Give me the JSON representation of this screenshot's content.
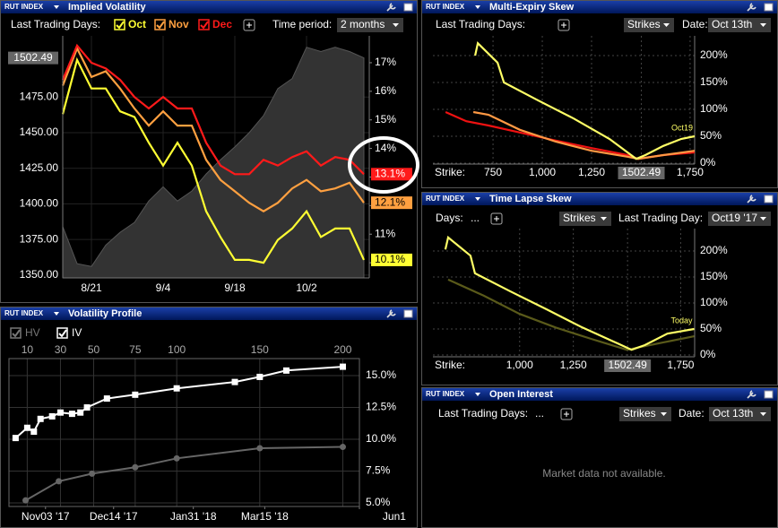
{
  "panels": [
    {
      "symbol": "RUT INDEX",
      "title": "Implied Volatility",
      "controls": {
        "days_label": "Last Trading Days:",
        "period_label": "Time period:",
        "period": "2 months"
      },
      "chart": {
        "type": "line",
        "categories": [
          null,
          null,
          "8/21",
          null,
          null,
          null,
          null,
          "9/4",
          null,
          null,
          null,
          null,
          "9/18",
          null,
          null,
          null,
          null,
          "10/2",
          null,
          null,
          null,
          null
        ],
        "series": [
          {
            "name": "Oct",
            "color": "#ffff33",
            "axis": "y2",
            "values": [
              15.2,
              17.1,
              16.1,
              16.1,
              15.3,
              15.1,
              14.2,
              13.4,
              14.2,
              13.4,
              11.8,
              10.9,
              10.1,
              10.1,
              10.0,
              10.8,
              11.2,
              11.8,
              10.9,
              11.2,
              11.2,
              10.1
            ],
            "value_labels": [
              null,
              null,
              null,
              null,
              null,
              null,
              null,
              null,
              null,
              null,
              null,
              null,
              null,
              null,
              null,
              null,
              null,
              null,
              null,
              null,
              null,
              "10.1%"
            ]
          },
          {
            "name": "Nov",
            "color": "#ffa040",
            "axis": "y2",
            "values": [
              16.2,
              17.5,
              16.5,
              16.7,
              16.1,
              15.4,
              14.8,
              15.3,
              14.8,
              14.8,
              13.6,
              12.9,
              12.5,
              12.1,
              11.8,
              12.1,
              12.6,
              12.9,
              12.5,
              12.6,
              12.8,
              12.1
            ],
            "value_labels": [
              null,
              null,
              null,
              null,
              null,
              null,
              null,
              null,
              null,
              null,
              null,
              null,
              null,
              null,
              null,
              null,
              null,
              null,
              null,
              null,
              null,
              "12.1%"
            ]
          },
          {
            "name": "Dec",
            "color": "#ff1a1a",
            "axis": "y2",
            "values": [
              16.4,
              17.6,
              17.0,
              16.8,
              16.4,
              15.8,
              15.4,
              15.8,
              15.4,
              15.4,
              14.2,
              13.4,
              13.1,
              13.1,
              13.6,
              13.4,
              13.7,
              13.9,
              13.4,
              13.7,
              13.6,
              13.1
            ],
            "value_labels": [
              null,
              null,
              null,
              null,
              null,
              null,
              null,
              null,
              null,
              null,
              null,
              null,
              null,
              null,
              null,
              null,
              null,
              null,
              null,
              null,
              null,
              "13.1%"
            ]
          },
          {
            "color": "#333333",
            "style": "area",
            "values": [
              1384,
              1358,
              1356,
              1371,
              1380,
              1387,
              1402,
              1412,
              1402,
              1409,
              1421,
              1431,
              1440,
              1450,
              1462,
              1481,
              1488,
              1510,
              1507,
              1510,
              1507,
              1502.49
            ],
            "value_labels": [
              null,
              null,
              null,
              null,
              null,
              null,
              null,
              null,
              null,
              null,
              null,
              null,
              null,
              null,
              null,
              null,
              null,
              null,
              null,
              null,
              null,
              "1502.49"
            ]
          }
        ],
        "ylim": [
          1348,
          1518
        ],
        "yticks": [
          {
            "value": 1350,
            "label": "1350.00"
          },
          {
            "value": 1375,
            "label": "1375.00"
          },
          {
            "value": 1400,
            "label": "1400.00"
          },
          {
            "value": 1425,
            "label": "1425.00"
          },
          {
            "value": 1450,
            "label": "1450.00"
          },
          {
            "value": 1475,
            "label": "1475.00"
          }
        ],
        "y2lim": [
          9.47,
          17.94
        ],
        "y2ticks": [
          {
            "value": 10,
            "label": "10%"
          },
          {
            "value": 11,
            "label": "11%"
          },
          {
            "value": 12,
            "label": "12%"
          },
          {
            "value": 13,
            "label": "13%"
          },
          {
            "value": 14,
            "label": "14%"
          },
          {
            "value": 15,
            "label": "15%"
          },
          {
            "value": 16,
            "label": "16%"
          },
          {
            "value": 17,
            "label": "17%"
          }
        ],
        "grid": true
      }
    },
    {
      "symbol": "RUT INDEX",
      "title": "Multi-Expiry Skew",
      "controls": {
        "days_label": "Last Trading Days:",
        "strikes": "Strikes",
        "date_label": "Date:",
        "date": "Oct 13th"
      },
      "chart": {
        "type": "line",
        "x_label": "Strike:",
        "xlim": [
          445,
          1773
        ],
        "xticks": [
          750,
          {
            "value": 1000,
            "label": "1,000"
          },
          {
            "value": 1250,
            "label": "1,250"
          },
          {
            "value": 1502.49,
            "label": "1502.49"
          },
          {
            "value": 1750,
            "label": "1,750"
          }
        ],
        "ylim": [
          -1.7,
          236.7
        ],
        "yticks": [
          {
            "value": 0,
            "label": "0%"
          },
          {
            "value": 50,
            "label": "50%"
          },
          {
            "value": 100,
            "label": "100%"
          },
          {
            "value": 150,
            "label": "150%"
          },
          {
            "value": 200,
            "label": "200%"
          }
        ],
        "series": [
          {
            "color": "#ee1111",
            "x": [
              509,
              614,
              727,
              886,
              1068,
              1250,
              1432,
              1486,
              1614,
              1773
            ],
            "values": [
              95,
              78,
              70,
              57,
              42,
              28,
              15,
              8,
              15,
              20
            ]
          },
          {
            "color": "#ff9944",
            "x": [
              650,
              727,
              886,
              1068,
              1250,
              1432,
              1486,
              1614,
              1773
            ],
            "values": [
              95,
              90,
              62,
              40,
              23,
              12,
              8,
              15,
              23
            ]
          },
          {
            "name": "Oct19",
            "color": "#ffff66",
            "x": [
              659,
              673,
              773,
              805,
              977,
              1159,
              1341,
              1477,
              1523,
              1614,
              1705,
              1773
            ],
            "values": [
              200,
              223,
              187,
              150,
              117,
              83,
              45,
              8,
              15,
              32,
              45,
              50
            ]
          }
        ],
        "grid": true
      }
    },
    {
      "symbol": "RUT INDEX",
      "title": "Time Lapse Skew",
      "controls": {
        "days_label": "Days:",
        "days": "...",
        "strikes": "Strikes",
        "day_label": "Last Trading Day:",
        "day": "Oct19 '17"
      },
      "chart": {
        "type": "line",
        "x_label": "Strike:",
        "xlim": [
          596,
          1815
        ],
        "xticks": [
          {
            "value": 1000,
            "label": "1,000"
          },
          {
            "value": 1250,
            "label": "1,250"
          },
          {
            "value": 1502.49,
            "label": "1502.49"
          },
          {
            "value": 1750,
            "label": "1,750"
          }
        ],
        "ylim": [
          -3.4,
          243
        ],
        "yticks": [
          {
            "value": 0,
            "label": "0%"
          },
          {
            "value": 50,
            "label": "50%"
          },
          {
            "value": 100,
            "label": "100%"
          },
          {
            "value": 150,
            "label": "150%"
          },
          {
            "value": 200,
            "label": "200%"
          }
        ],
        "series": [
          {
            "color": "#5a5a1a",
            "x": [
              667,
              833,
              1000,
              1167,
              1333,
              1500,
              1667,
              1813
            ],
            "values": [
              145,
              114,
              79,
              53,
              31,
              10,
              24,
              36
            ]
          },
          {
            "name": "Today",
            "color": "#ffff66",
            "x": [
              654,
              667,
              771,
              792,
              958,
              1125,
              1292,
              1458,
              1521,
              1583,
              1688,
              1813
            ],
            "values": [
              203,
              226,
              191,
              157,
              122,
              88,
              53,
              22,
              10,
              19,
              41,
              50
            ]
          }
        ],
        "grid": true
      }
    },
    {
      "symbol": "RUT INDEX",
      "title": "Volatility Profile",
      "chart": {
        "type": "line",
        "xlim": [
          -1,
          210
        ],
        "xticks": [
          10,
          30,
          50,
          75,
          100,
          150,
          200
        ],
        "x2ticks": [
          {
            "value": 21,
            "label": "Nov03 '17"
          },
          {
            "value": 62,
            "label": "Dec14 '17"
          },
          {
            "value": 110,
            "label": "Jan31 '18"
          },
          {
            "value": 153,
            "label": "Mar15 '18"
          },
          {
            "value": 231,
            "label": "Jun1"
          }
        ],
        "ylim": [
          4.72,
          16.34
        ],
        "yticks": [
          {
            "value": 5,
            "label": "5.0%"
          },
          {
            "value": 7.5,
            "label": "7.5%"
          },
          {
            "value": 10,
            "label": "10.0%"
          },
          {
            "value": 12.5,
            "label": "12.5%"
          },
          {
            "value": 15,
            "label": "15.0%"
          }
        ],
        "series": [
          {
            "name": "HV",
            "color": "#666666",
            "marker": "circle",
            "x": [
              9,
              29,
              49,
              75,
              100,
              150,
              200
            ],
            "values": [
              5.2,
              6.7,
              7.3,
              7.8,
              8.5,
              9.3,
              9.4
            ]
          },
          {
            "name": "IV",
            "color": "#ffffff",
            "marker": "square",
            "x": [
              3,
              10,
              14,
              18,
              25,
              30,
              37,
              42,
              46,
              58,
              75,
              100,
              135,
              150,
              166,
              200
            ],
            "values": [
              10.1,
              10.9,
              10.6,
              11.6,
              11.8,
              12.1,
              12.0,
              12.1,
              12.5,
              13.2,
              13.5,
              14.0,
              14.5,
              14.9,
              15.4,
              15.7
            ]
          }
        ],
        "grid": true
      }
    },
    {
      "symbol": "RUT INDEX",
      "title": "Open Interest",
      "controls": {
        "days_label": "Last Trading Days:",
        "days": "...",
        "strikes": "Strikes",
        "date_label": "Date:",
        "date": "Oct 13th"
      },
      "message": "Market data not available."
    }
  ]
}
